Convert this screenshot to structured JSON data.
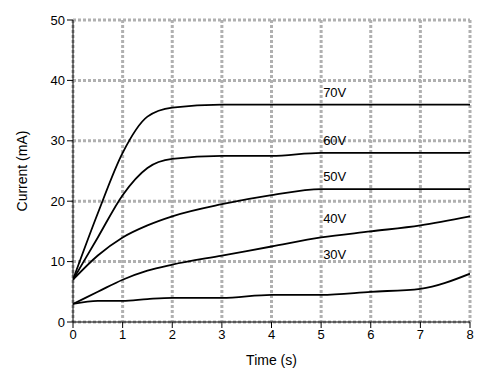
{
  "chart_data": {
    "type": "line",
    "x_label": "Time (s)",
    "y_label": "Current (mA)",
    "x": [
      0,
      0.5,
      1,
      1.5,
      2,
      3,
      4,
      5,
      6,
      7,
      8
    ],
    "series": [
      {
        "name": "30V",
        "color": "#000000",
        "values": [
          3,
          3.5,
          3.5,
          3.8,
          4,
          4,
          4.5,
          4.5,
          5,
          5.5,
          8
        ]
      },
      {
        "name": "40V",
        "color": "#000000",
        "values": [
          3,
          5,
          7,
          8.5,
          9.5,
          11,
          12.5,
          14,
          15,
          16,
          17.5
        ]
      },
      {
        "name": "50V",
        "color": "#000000",
        "values": [
          7,
          11,
          14,
          16,
          17.5,
          19.5,
          21,
          22,
          22,
          22,
          22
        ]
      },
      {
        "name": "60V",
        "color": "#000000",
        "values": [
          7,
          14,
          21,
          25.5,
          27,
          27.5,
          27.5,
          28,
          28,
          28,
          28
        ]
      },
      {
        "name": "70V",
        "color": "#000000",
        "values": [
          7,
          18,
          28,
          34,
          35.5,
          36,
          36,
          36,
          36,
          36,
          36
        ]
      }
    ],
    "xlim": [
      0,
      8
    ],
    "xticks": [
      0,
      1,
      2,
      3,
      4,
      5,
      6,
      7,
      8
    ],
    "ylim": [
      0,
      50
    ],
    "yticks": [
      0,
      10,
      20,
      30,
      40,
      50
    ],
    "grid": true
  }
}
